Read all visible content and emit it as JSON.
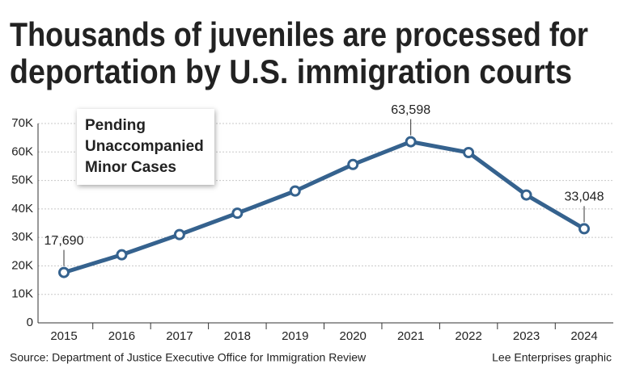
{
  "chart_data": {
    "type": "line",
    "title": [
      "Thousands of juveniles are processed for",
      "deportation by U.S. immigration courts"
    ],
    "categories": [
      "2015",
      "2016",
      "2017",
      "2018",
      "2019",
      "2020",
      "2021",
      "2022",
      "2023",
      "2024"
    ],
    "series": [
      {
        "name": "Pending Unaccompanied Minor Cases",
        "color": "#35628e",
        "values": [
          17690,
          23900,
          31000,
          38500,
          46300,
          55600,
          63598,
          59800,
          44900,
          33048
        ],
        "value_labels": [
          "17,690",
          null,
          null,
          null,
          null,
          null,
          "63,598",
          null,
          null,
          "33,048"
        ]
      }
    ],
    "ylim": [
      0,
      70000
    ],
    "yticks": [
      0,
      {
        "value": 10000,
        "label": "10K"
      },
      {
        "value": 20000,
        "label": "20K"
      },
      {
        "value": 30000,
        "label": "30K"
      },
      {
        "value": 40000,
        "label": "40K"
      },
      {
        "value": 50000,
        "label": "50K"
      },
      {
        "value": 60000,
        "label": "60K"
      },
      {
        "value": 70000,
        "label": "70K"
      }
    ],
    "grid": true,
    "source": "Source: Department of Justice Executive Office for Immigration Review",
    "credit": "Lee Enterprises graphic"
  }
}
